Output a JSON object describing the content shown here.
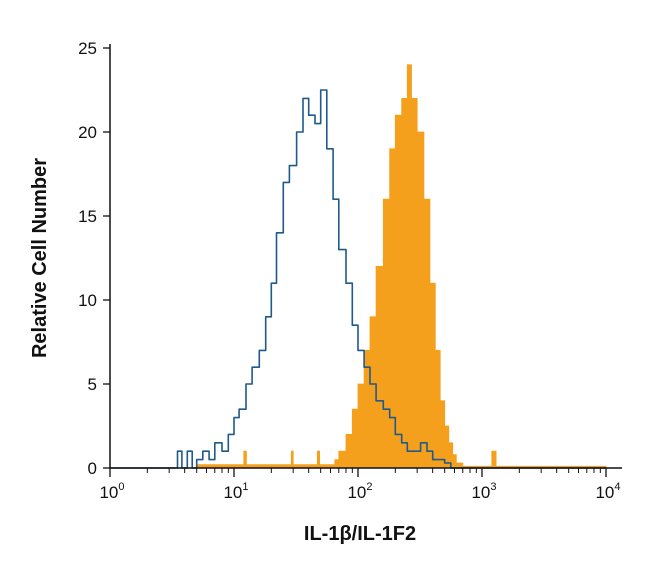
{
  "chart_data": {
    "type": "histogram",
    "xlabel": "IL-1β/IL-1F2",
    "ylabel": "Relative Cell Number",
    "x_scale": "log10",
    "xlim": [
      1,
      10000
    ],
    "ylim": [
      0,
      25
    ],
    "x_ticks": [
      {
        "base": "10",
        "exp": "0",
        "value": 1
      },
      {
        "base": "10",
        "exp": "1",
        "value": 10
      },
      {
        "base": "10",
        "exp": "2",
        "value": 100
      },
      {
        "base": "10",
        "exp": "3",
        "value": 1000
      },
      {
        "base": "10",
        "exp": "4",
        "value": 10000
      }
    ],
    "y_ticks": [
      {
        "label": "0",
        "value": 0
      },
      {
        "label": "5",
        "value": 5
      },
      {
        "label": "10",
        "value": 10
      },
      {
        "label": "15",
        "value": 15
      },
      {
        "label": "20",
        "value": 20
      },
      {
        "label": "25",
        "value": 25
      }
    ],
    "grid": false,
    "series": [
      {
        "role": "isotype-control",
        "style": "outline",
        "color": "#1f5a8a",
        "x": [
          1,
          3.2,
          3.5,
          3.8,
          4.2,
          4.6,
          5,
          5.6,
          6.3,
          7,
          8,
          9,
          10,
          11,
          12.5,
          14,
          16,
          18,
          20,
          22,
          25,
          28,
          32,
          36,
          40,
          45,
          50,
          56,
          63,
          70,
          80,
          90,
          100,
          112,
          125,
          140,
          160,
          180,
          200,
          225,
          250,
          280,
          320,
          360,
          400,
          450,
          500,
          560,
          630,
          800,
          1000,
          10000
        ],
        "y": [
          0,
          0,
          1,
          0,
          1,
          0,
          0.5,
          1,
          0.5,
          1.5,
          1,
          2,
          3,
          3.5,
          5,
          6,
          7,
          9,
          11,
          14,
          17,
          18,
          20,
          22,
          21,
          20.5,
          22.5,
          19,
          16,
          13,
          11,
          8.5,
          7,
          6,
          5,
          4,
          3.5,
          3,
          2,
          1.5,
          1,
          1,
          1.5,
          1,
          0.5,
          0.5,
          0.3,
          0,
          0,
          0,
          0,
          0
        ]
      },
      {
        "role": "stained",
        "style": "filled",
        "color": "#f5a01d",
        "x": [
          1,
          5,
          11.5,
          12,
          12.6,
          20,
          28,
          29,
          30,
          45,
          47,
          49,
          60,
          65,
          70,
          80,
          90,
          100,
          112,
          125,
          140,
          160,
          180,
          200,
          225,
          250,
          270,
          300,
          340,
          380,
          420,
          460,
          500,
          540,
          580,
          620,
          700,
          1100,
          1200,
          1300,
          10000
        ],
        "y": [
          0,
          0.2,
          0.2,
          1,
          0.2,
          0.2,
          0.2,
          1,
          0.2,
          0.2,
          1,
          0.2,
          0.2,
          0.5,
          1,
          2,
          3.5,
          5,
          7,
          9,
          12,
          16,
          19,
          21,
          22,
          24,
          22,
          20,
          16,
          11,
          7,
          4,
          2.5,
          1.5,
          0.8,
          0.3,
          0.1,
          0.1,
          1,
          0.1,
          0
        ]
      }
    ]
  }
}
